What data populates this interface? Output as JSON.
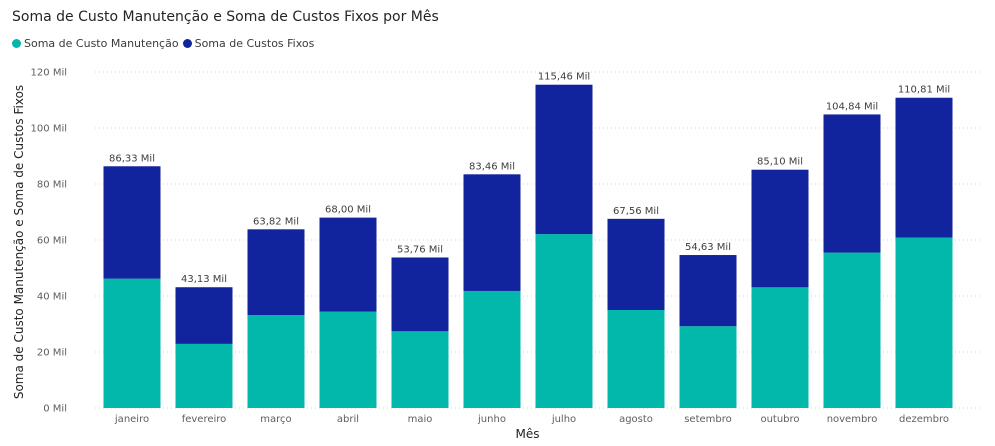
{
  "chart_data": {
    "type": "bar",
    "stacked": true,
    "title": "Soma de Custo Manutenção e Soma de Custos Fixos por Mês",
    "xlabel": "Mês",
    "ylabel": "Soma de Custo Manutenção e Soma de Custos Fixos",
    "ylim": [
      0,
      120
    ],
    "yticks": [
      0,
      20,
      40,
      60,
      80,
      100,
      120
    ],
    "ytick_labels": [
      "0 Mil",
      "20 Mil",
      "40 Mil",
      "60 Mil",
      "80 Mil",
      "100 Mil",
      "120 Mil"
    ],
    "grid": true,
    "legend_position": "top-left",
    "categories": [
      "janeiro",
      "fevereiro",
      "março",
      "abril",
      "maio",
      "junho",
      "julho",
      "agosto",
      "setembro",
      "outubro",
      "novembro",
      "dezembro"
    ],
    "series": [
      {
        "name": "Soma de Custo Manutenção",
        "color": "#01B8AA",
        "values": [
          46.2,
          22.9,
          33.2,
          34.4,
          27.4,
          41.8,
          62.1,
          35.0,
          29.2,
          43.1,
          55.5,
          60.9
        ]
      },
      {
        "name": "Soma de Custos Fixos",
        "color": "#12239E",
        "values": [
          40.13,
          20.23,
          30.62,
          33.6,
          26.36,
          41.66,
          53.36,
          32.56,
          25.43,
          42.0,
          49.34,
          49.91
        ]
      }
    ],
    "totals": [
      86.33,
      43.13,
      63.82,
      68.0,
      53.76,
      83.46,
      115.46,
      67.56,
      54.63,
      85.1,
      104.84,
      110.81
    ],
    "total_labels": [
      "86,33 Mil",
      "43,13 Mil",
      "63,82 Mil",
      "68,00 Mil",
      "53,76 Mil",
      "83,46 Mil",
      "115,46 Mil",
      "67,56 Mil",
      "54,63 Mil",
      "85,10 Mil",
      "104,84 Mil",
      "110,81 Mil"
    ]
  }
}
